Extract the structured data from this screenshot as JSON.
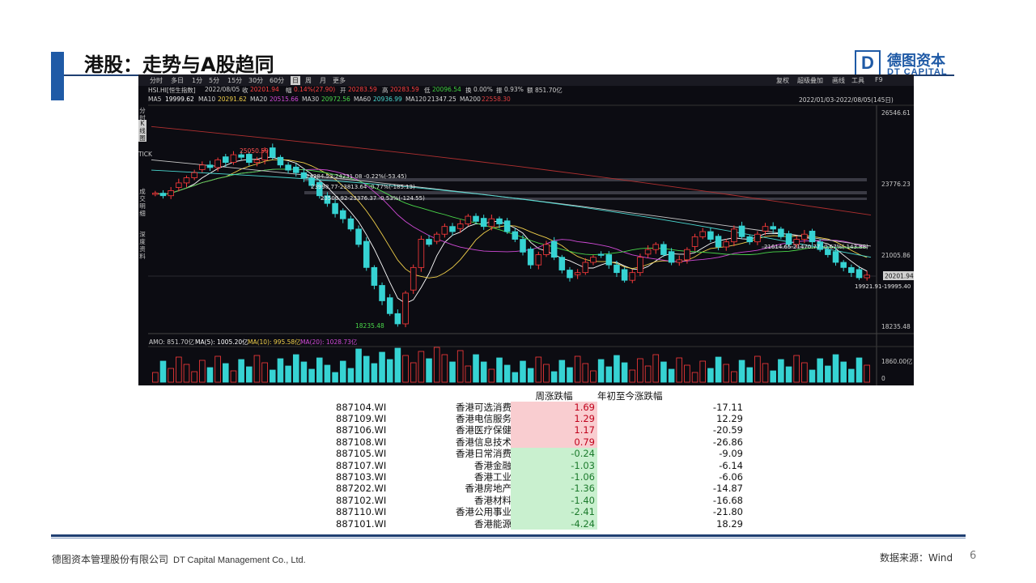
{
  "slide": {
    "title": "港股：走势与A股趋同",
    "logo": {
      "mark": "D",
      "cn": "德图资本",
      "en": "DT CAPITAL"
    },
    "footer": {
      "company_cn": "德图资本管理股份有限公司",
      "company_en": "DT Capital Management Co., Ltd.",
      "source": "数据来源：Wind",
      "page": "6"
    }
  },
  "terminal": {
    "tabs": [
      "分时",
      "多日",
      "1分",
      "5分",
      "15分",
      "30分",
      "60分",
      "日",
      "周",
      "月",
      "更多"
    ],
    "active_tab": "日",
    "tools": [
      "复权",
      "超级叠加",
      "画线",
      "工具",
      "F9"
    ],
    "quote": {
      "symbol": "HSI.HI[恒生指数]",
      "date": "2022/08/05",
      "close_label": "收",
      "close": "20201.94",
      "chg_label": "幅",
      "chg": "0.14%(27.90)",
      "open_label": "开",
      "open": "20283.59",
      "high_label": "高",
      "high": "20283.59",
      "low_label": "低",
      "low": "20096.54",
      "turnover_label": "换",
      "turnover": "0.00%",
      "amp_label": "振",
      "amp": "0.93%",
      "amount_label": "额",
      "amount": "851.70亿"
    },
    "ma_line": [
      {
        "label": "MA5",
        "value": "19999.62",
        "color": "#ffffff"
      },
      {
        "label": "MA10",
        "value": "20291.62",
        "color": "#f1d04a"
      },
      {
        "label": "MA20",
        "value": "20515.66",
        "color": "#d04ad6"
      },
      {
        "label": "MA30",
        "value": "20972.56",
        "color": "#4ad84a"
      },
      {
        "label": "MA60",
        "value": "20936.99",
        "color": "#4ad8d0"
      },
      {
        "label": "MA120",
        "value": "21347.25",
        "color": "#d8d8d8"
      },
      {
        "label": "MA200",
        "value": "22558.30",
        "color": "#e04040"
      }
    ],
    "range_label": "2022/01/03-2022/08/05(145日)",
    "side_tabs": [
      "分时图",
      "K线图",
      "TICK",
      "成交明细",
      "深度资料"
    ],
    "active_side_tab": "K线图",
    "price_axis": [
      "26546.61",
      "23776.23",
      "21005.86",
      "18235.48"
    ],
    "last_price_tag": "20201.94",
    "annotations": {
      "high": "25050.59",
      "low": "18235.48",
      "range1": "24284.53-24231.08 -0.22%(-53.45)",
      "range2": "23998.77-23813.64 -0.77%(-185.13)",
      "range3": "23500.92-23376.37 -0.53%(-124.55)",
      "range4": "21614.65-21470.77 -0.67%(-143.88)",
      "recent_low": "19921.91-19995.40"
    },
    "volume_info": {
      "amo": "AMO: 851.70亿",
      "ma5": "MA(5): 1005.20亿",
      "ma10": "MA(10): 995.58亿",
      "ma20": "MA(20): 1028.73亿"
    },
    "volume_axis": [
      "1860.00亿",
      "0"
    ]
  },
  "table": {
    "headers": {
      "weekly": "周涨跌幅",
      "ytd": "年初至今涨跌幅"
    },
    "rows": [
      {
        "code": "887104.WI",
        "name": "香港可选消费",
        "weekly": "1.69",
        "ytd": "-17.11",
        "sign": "pos"
      },
      {
        "code": "887109.WI",
        "name": "香港电信服务",
        "weekly": "1.29",
        "ytd": "12.29",
        "sign": "pos"
      },
      {
        "code": "887106.WI",
        "name": "香港医疗保健",
        "weekly": "1.17",
        "ytd": "-20.59",
        "sign": "pos"
      },
      {
        "code": "887108.WI",
        "name": "香港信息技术",
        "weekly": "0.79",
        "ytd": "-26.86",
        "sign": "pos"
      },
      {
        "code": "887105.WI",
        "name": "香港日常消费",
        "weekly": "-0.24",
        "ytd": "-9.09",
        "sign": "neg"
      },
      {
        "code": "887107.WI",
        "name": "香港金融",
        "weekly": "-1.03",
        "ytd": "-6.14",
        "sign": "neg"
      },
      {
        "code": "887103.WI",
        "name": "香港工业",
        "weekly": "-1.06",
        "ytd": "-6.06",
        "sign": "neg"
      },
      {
        "code": "887202.WI",
        "name": "香港房地产",
        "weekly": "-1.36",
        "ytd": "-14.87",
        "sign": "neg"
      },
      {
        "code": "887102.WI",
        "name": "香港材料",
        "weekly": "-1.40",
        "ytd": "-16.68",
        "sign": "neg"
      },
      {
        "code": "887110.WI",
        "name": "香港公用事业",
        "weekly": "-2.41",
        "ytd": "-21.80",
        "sign": "neg"
      },
      {
        "code": "887101.WI",
        "name": "香港能源",
        "weekly": "-4.24",
        "ytd": "18.29",
        "sign": "neg"
      }
    ]
  },
  "chart_data": {
    "type": "candlestick",
    "x_range": [
      "2022/01/03",
      "2022/08/05"
    ],
    "y_axis_ticks": [
      26546.61,
      23776.23,
      21005.86,
      18235.48
    ],
    "closes": [
      23400,
      23300,
      23500,
      23800,
      24000,
      24200,
      24500,
      24400,
      24700,
      24600,
      24900,
      24800,
      24600,
      24700,
      25050,
      24800,
      24500,
      24300,
      24200,
      24000,
      23700,
      23300,
      23000,
      22600,
      22400,
      22000,
      21400,
      20500,
      19800,
      19200,
      18700,
      18300,
      19500,
      20500,
      21600,
      21400,
      21800,
      22100,
      21900,
      22200,
      22500,
      22300,
      22100,
      22400,
      22200,
      21900,
      21600,
      21100,
      20600,
      21000,
      21400,
      20900,
      20400,
      20100,
      20300,
      20700,
      20900,
      21000,
      20600,
      20300,
      20000,
      20300,
      20900,
      21200,
      21400,
      21000,
      20700,
      20800,
      21200,
      21700,
      21900,
      21600,
      21300,
      21500,
      22000,
      21700,
      21500,
      21800,
      22100,
      22000,
      21700,
      21400,
      21600,
      21800,
      21500,
      21200,
      21000,
      20700,
      20500,
      20300,
      20100,
      20200
    ]
  }
}
